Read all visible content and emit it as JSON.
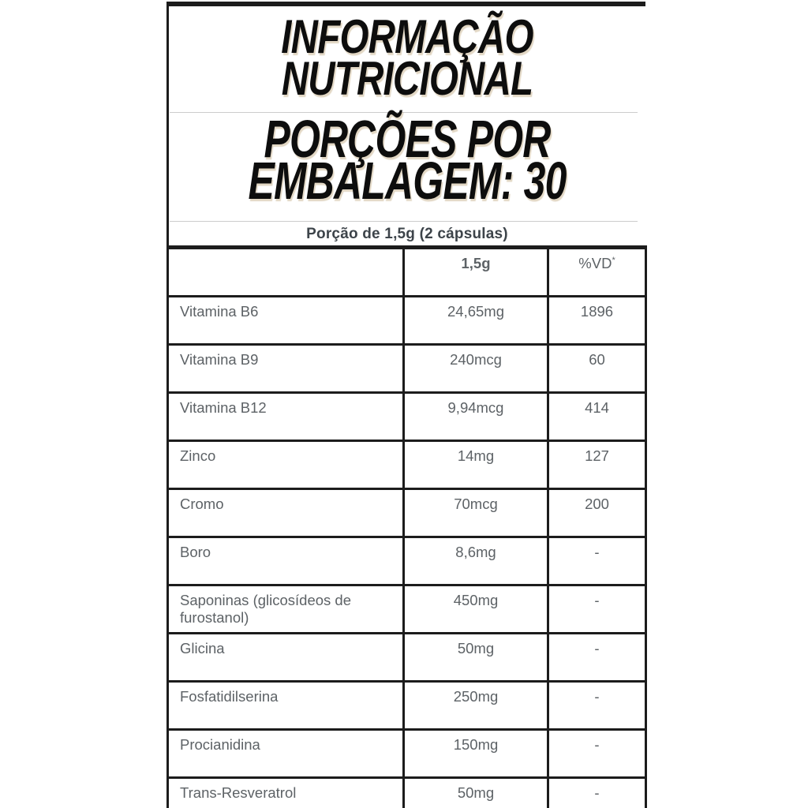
{
  "header": {
    "title_line1": "INFORMAÇÃO",
    "title_line2": "NUTRICIONAL",
    "servings_line1": "PORÇÕES POR",
    "servings_line2": "EMBALAGEM: 30",
    "serving_size": "Porção de 1,5g (2 cápsulas)"
  },
  "table": {
    "col_product_header": "",
    "col_amount_header": "1,5g",
    "col_vd_header": "%VD",
    "col_vd_superscript": "*",
    "rows": [
      {
        "name": "Vitamina B6",
        "amount": "24,65mg",
        "vd": "1896"
      },
      {
        "name": "Vitamina B9",
        "amount": "240mcg",
        "vd": "60"
      },
      {
        "name": "Vitamina B12",
        "amount": "9,94mcg",
        "vd": "414"
      },
      {
        "name": "Zinco",
        "amount": "14mg",
        "vd": "127"
      },
      {
        "name": "Cromo",
        "amount": "70mcg",
        "vd": "200"
      },
      {
        "name": "Boro",
        "amount": "8,6mg",
        "vd": "-"
      },
      {
        "name": "Saponinas (glicosídeos de furostanol)",
        "amount": "450mg",
        "vd": "-"
      },
      {
        "name": "Glicina",
        "amount": "50mg",
        "vd": "-"
      },
      {
        "name": "Fosfatidilserina",
        "amount": "250mg",
        "vd": "-"
      },
      {
        "name": "Procianidina",
        "amount": "150mg",
        "vd": "-"
      },
      {
        "name": "Trans-Resveratrol",
        "amount": "50mg",
        "vd": "-"
      }
    ]
  },
  "colors": {
    "border": "#1c1c1c",
    "title_text": "#0d0d0d",
    "body_text": "#5d6266",
    "emphasis_text": "#3d444a",
    "divider": "#cccccc",
    "background": "#ffffff"
  }
}
